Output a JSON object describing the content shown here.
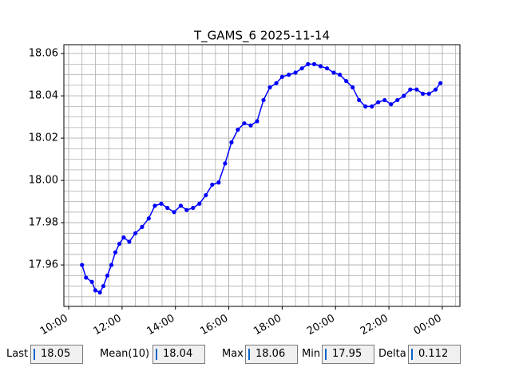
{
  "chart_data": {
    "type": "line",
    "title": "T_GAMS_6 2025-11-14",
    "x": [
      10.5,
      10.65,
      10.87,
      11.0,
      11.17,
      11.3,
      11.45,
      11.6,
      11.75,
      11.9,
      12.06,
      12.27,
      12.5,
      12.75,
      13.0,
      13.23,
      13.47,
      13.7,
      13.95,
      14.2,
      14.42,
      14.66,
      14.9,
      15.14,
      15.38,
      15.62,
      15.86,
      16.1,
      16.34,
      16.58,
      16.82,
      17.06,
      17.3,
      17.54,
      17.78,
      18.0,
      18.25,
      18.5,
      18.74,
      18.97,
      19.2,
      19.44,
      19.68,
      19.93,
      20.16,
      20.4,
      20.64,
      20.88,
      21.12,
      21.36,
      21.6,
      21.84,
      22.08,
      22.32,
      22.56,
      22.8,
      23.04,
      23.27,
      23.5,
      23.75,
      23.93
    ],
    "series": [
      {
        "color": "#0000ff",
        "values": [
          17.96,
          17.954,
          17.952,
          17.948,
          17.947,
          17.95,
          17.955,
          17.96,
          17.966,
          17.97,
          17.973,
          17.971,
          17.975,
          17.978,
          17.982,
          17.988,
          17.989,
          17.987,
          17.985,
          17.988,
          17.986,
          17.987,
          17.989,
          17.993,
          17.998,
          17.999,
          18.008,
          18.018,
          18.024,
          18.027,
          18.026,
          18.028,
          18.038,
          18.044,
          18.046,
          18.049,
          18.05,
          18.051,
          18.053,
          18.055,
          18.055,
          18.054,
          18.053,
          18.051,
          18.05,
          18.047,
          18.044,
          18.038,
          18.035,
          18.035,
          18.037,
          18.038,
          18.036,
          18.038,
          18.04,
          18.043,
          18.043,
          18.041,
          18.041,
          18.043,
          18.046
        ]
      }
    ],
    "xlim": [
      9.82,
      24.66
    ],
    "xticks": [
      {
        "value": 10,
        "label": "10:00"
      },
      {
        "value": 12,
        "label": "12:00"
      },
      {
        "value": 14,
        "label": "14:00"
      },
      {
        "value": 16,
        "label": "16:00"
      },
      {
        "value": 18,
        "label": "18:00"
      },
      {
        "value": 20,
        "label": "20:00"
      },
      {
        "value": 22,
        "label": "22:00"
      },
      {
        "value": 24,
        "label": "00:00"
      }
    ],
    "ylim": [
      17.9404,
      18.0642
    ],
    "yticks": [
      {
        "value": 17.96,
        "label": "17.96"
      },
      {
        "value": 17.98,
        "label": "17.98"
      },
      {
        "value": 18.0,
        "label": "18.00"
      },
      {
        "value": 18.02,
        "label": "18.02"
      },
      {
        "value": 18.04,
        "label": "18.04"
      },
      {
        "value": 18.06,
        "label": "18.06"
      }
    ],
    "grid": true
  },
  "status": [
    {
      "label": "Last",
      "value": "18.05"
    },
    {
      "label": "Mean(10)",
      "value": "18.04"
    },
    {
      "label": "Max",
      "value": "18.06"
    },
    {
      "label": "Min",
      "value": "17.95"
    },
    {
      "label": "Delta",
      "value": "0.112"
    }
  ]
}
